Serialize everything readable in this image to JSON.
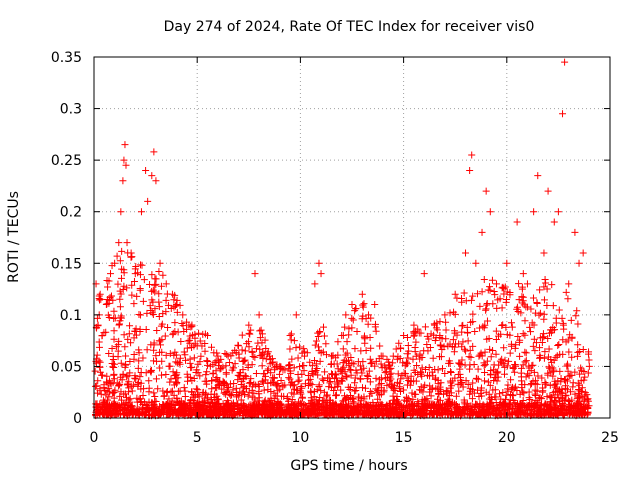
{
  "chart_data": {
    "type": "scatter",
    "title": "Day 274 of 2024, Rate Of TEC Index for receiver vis0",
    "xlabel": "GPS time / hours",
    "ylabel": "ROTI / TECUs",
    "xlim": [
      0,
      25
    ],
    "ylim": [
      0,
      0.35
    ],
    "xticks": [
      0,
      5,
      10,
      15,
      20,
      25
    ],
    "xtick_labels": [
      "0",
      "5",
      "10",
      "15",
      "20",
      "25"
    ],
    "yticks": [
      0,
      0.05,
      0.1,
      0.15,
      0.2,
      0.25,
      0.3,
      0.35
    ],
    "ytick_labels": [
      "0",
      "0.05",
      "0.1",
      "0.15",
      "0.2",
      "0.25",
      "0.3",
      "0.35"
    ],
    "grid": true,
    "marker": "+",
    "color": "#ff0000",
    "series": [
      {
        "name": "ROTI",
        "points": [
          [
            0.1,
            0.13
          ],
          [
            0.2,
            0.09
          ],
          [
            0.3,
            0.12
          ],
          [
            0.4,
            0.08
          ],
          [
            0.6,
            0.11
          ],
          [
            0.8,
            0.14
          ],
          [
            1.0,
            0.15
          ],
          [
            1.2,
            0.17
          ],
          [
            1.3,
            0.2
          ],
          [
            1.4,
            0.23
          ],
          [
            1.45,
            0.25
          ],
          [
            1.5,
            0.265
          ],
          [
            1.55,
            0.245
          ],
          [
            1.6,
            0.17
          ],
          [
            1.8,
            0.16
          ],
          [
            2.0,
            0.14
          ],
          [
            2.3,
            0.2
          ],
          [
            2.5,
            0.24
          ],
          [
            2.6,
            0.21
          ],
          [
            2.8,
            0.235
          ],
          [
            2.9,
            0.258
          ],
          [
            3.0,
            0.23
          ],
          [
            3.2,
            0.15
          ],
          [
            3.5,
            0.13
          ],
          [
            3.8,
            0.12
          ],
          [
            4.0,
            0.11
          ],
          [
            4.3,
            0.1
          ],
          [
            4.6,
            0.09
          ],
          [
            5.0,
            0.07
          ],
          [
            5.5,
            0.08
          ],
          [
            6.0,
            0.06
          ],
          [
            6.5,
            0.06
          ],
          [
            7.0,
            0.07
          ],
          [
            7.5,
            0.09
          ],
          [
            7.8,
            0.14
          ],
          [
            8.0,
            0.1
          ],
          [
            8.5,
            0.06
          ],
          [
            9.0,
            0.05
          ],
          [
            9.5,
            0.08
          ],
          [
            9.8,
            0.1
          ],
          [
            10.2,
            0.06
          ],
          [
            10.7,
            0.13
          ],
          [
            10.9,
            0.15
          ],
          [
            11.0,
            0.14
          ],
          [
            11.5,
            0.06
          ],
          [
            12.0,
            0.08
          ],
          [
            12.2,
            0.1
          ],
          [
            12.5,
            0.11
          ],
          [
            13.0,
            0.12
          ],
          [
            13.3,
            0.1
          ],
          [
            13.6,
            0.11
          ],
          [
            14.0,
            0.06
          ],
          [
            14.5,
            0.06
          ],
          [
            15.0,
            0.08
          ],
          [
            15.5,
            0.09
          ],
          [
            16.0,
            0.14
          ],
          [
            16.5,
            0.09
          ],
          [
            17.0,
            0.1
          ],
          [
            17.5,
            0.12
          ],
          [
            18.0,
            0.16
          ],
          [
            18.2,
            0.24
          ],
          [
            18.3,
            0.255
          ],
          [
            18.5,
            0.15
          ],
          [
            18.8,
            0.18
          ],
          [
            19.0,
            0.22
          ],
          [
            19.2,
            0.2
          ],
          [
            19.5,
            0.13
          ],
          [
            20.0,
            0.15
          ],
          [
            20.5,
            0.19
          ],
          [
            20.8,
            0.14
          ],
          [
            21.0,
            0.13
          ],
          [
            21.3,
            0.2
          ],
          [
            21.5,
            0.235
          ],
          [
            21.8,
            0.16
          ],
          [
            22.0,
            0.22
          ],
          [
            22.3,
            0.19
          ],
          [
            22.5,
            0.2
          ],
          [
            22.7,
            0.295
          ],
          [
            22.8,
            0.345
          ],
          [
            23.0,
            0.13
          ],
          [
            23.3,
            0.18
          ],
          [
            23.5,
            0.15
          ],
          [
            23.7,
            0.16
          ],
          [
            24.0,
            0.05
          ]
        ]
      }
    ],
    "envelope": {
      "x": [
        0,
        0.5,
        1,
        1.5,
        2,
        2.5,
        3,
        3.5,
        4,
        4.5,
        5,
        5.5,
        6,
        6.5,
        7,
        7.5,
        8,
        8.5,
        9,
        9.5,
        10,
        10.5,
        11,
        11.5,
        12,
        12.5,
        13,
        13.5,
        14,
        14.5,
        15,
        15.5,
        16,
        16.5,
        17,
        17.5,
        18,
        18.5,
        19,
        19.5,
        20,
        20.5,
        21,
        21.5,
        22,
        22.5,
        23,
        23.5,
        24
      ],
      "upper": [
        0.13,
        0.13,
        0.15,
        0.17,
        0.16,
        0.15,
        0.15,
        0.13,
        0.12,
        0.1,
        0.08,
        0.08,
        0.06,
        0.06,
        0.07,
        0.09,
        0.09,
        0.06,
        0.05,
        0.08,
        0.07,
        0.06,
        0.1,
        0.06,
        0.08,
        0.1,
        0.11,
        0.1,
        0.06,
        0.06,
        0.08,
        0.09,
        0.11,
        0.09,
        0.1,
        0.11,
        0.13,
        0.12,
        0.15,
        0.12,
        0.13,
        0.13,
        0.12,
        0.14,
        0.13,
        0.13,
        0.12,
        0.1,
        0.06
      ]
    }
  }
}
